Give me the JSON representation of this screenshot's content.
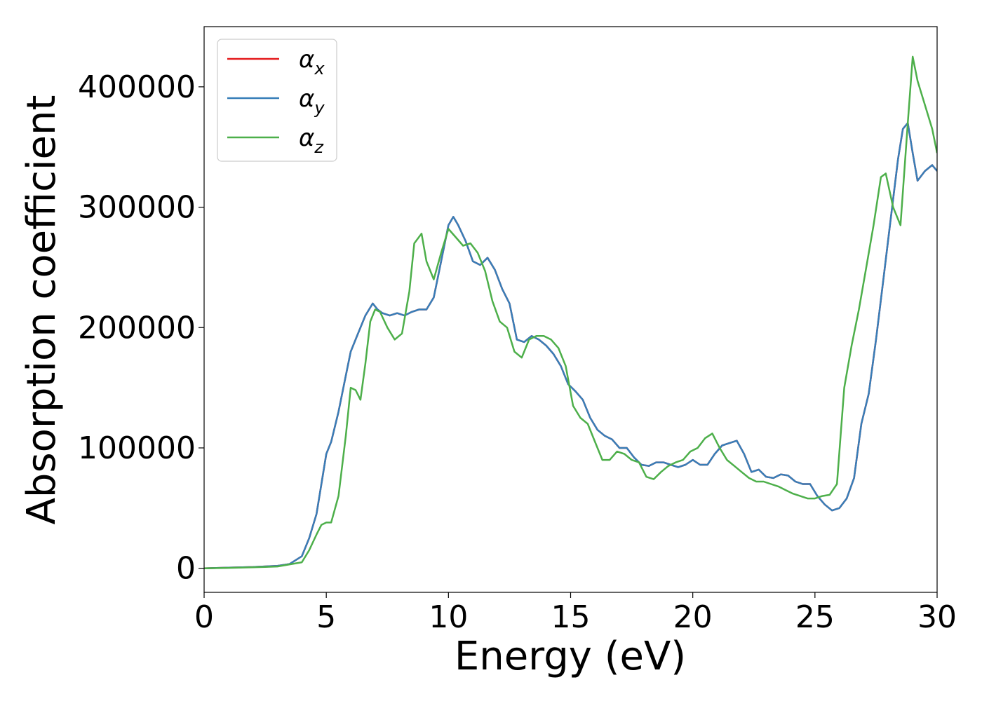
{
  "chart_data": {
    "type": "line",
    "title": "",
    "xlabel": "Energy (eV)",
    "ylabel": "Absorption coefficient",
    "xlim": [
      0,
      30
    ],
    "ylim": [
      -20000,
      450000
    ],
    "xticks": [
      0,
      5,
      10,
      15,
      20,
      25,
      30
    ],
    "yticks": [
      0,
      100000,
      200000,
      300000,
      400000
    ],
    "grid": false,
    "legend": {
      "placement": "top-left"
    },
    "series": [
      {
        "name": "αx",
        "color": "#e41a1c",
        "x": [
          0,
          1,
          2,
          3,
          3.5,
          4,
          4.3,
          4.6,
          4.8,
          5.0,
          5.2,
          5.5,
          5.8,
          6.0,
          6.3,
          6.6,
          6.9,
          7.1,
          7.3,
          7.6,
          7.9,
          8.2,
          8.5,
          8.8,
          9.1,
          9.4,
          9.7,
          10.0,
          10.2,
          10.4,
          10.7,
          11.0,
          11.3,
          11.6,
          11.9,
          12.2,
          12.5,
          12.8,
          13.1,
          13.4,
          13.7,
          14.0,
          14.3,
          14.6,
          14.9,
          15.2,
          15.5,
          15.8,
          16.1,
          16.4,
          16.7,
          17.0,
          17.3,
          17.6,
          17.9,
          18.2,
          18.5,
          18.8,
          19.1,
          19.4,
          19.7,
          20.0,
          20.3,
          20.6,
          20.9,
          21.2,
          21.5,
          21.8,
          22.1,
          22.4,
          22.7,
          23.0,
          23.3,
          23.6,
          23.9,
          24.2,
          24.5,
          24.8,
          25.1,
          25.4,
          25.7,
          26.0,
          26.3,
          26.6,
          26.9,
          27.2,
          27.5,
          27.8,
          28.1,
          28.4,
          28.6,
          28.8,
          29.0,
          29.2,
          29.5,
          29.8,
          30.0
        ],
        "values": [
          0,
          500,
          1000,
          2000,
          3500,
          10000,
          25000,
          45000,
          70000,
          95000,
          105000,
          130000,
          160000,
          180000,
          195000,
          210000,
          220000,
          215000,
          212000,
          210000,
          212000,
          210000,
          213000,
          215000,
          215000,
          225000,
          255000,
          285000,
          292000,
          285000,
          272000,
          255000,
          252000,
          258000,
          248000,
          232000,
          220000,
          190000,
          188000,
          193000,
          190000,
          185000,
          178000,
          168000,
          153000,
          147000,
          140000,
          125000,
          115000,
          110000,
          107000,
          100000,
          100000,
          92000,
          86000,
          85000,
          88000,
          88000,
          86000,
          84000,
          86000,
          90000,
          86000,
          86000,
          95000,
          102000,
          104000,
          106000,
          95000,
          80000,
          82000,
          76000,
          75000,
          78000,
          77000,
          72000,
          70000,
          70000,
          60000,
          53000,
          48000,
          50000,
          58000,
          75000,
          120000,
          145000,
          190000,
          240000,
          290000,
          340000,
          365000,
          370000,
          345000,
          322000,
          330000,
          335000,
          330000
        ]
      },
      {
        "name": "αy",
        "color": "#377eb8",
        "x": [
          0,
          1,
          2,
          3,
          3.5,
          4,
          4.3,
          4.6,
          4.8,
          5.0,
          5.2,
          5.5,
          5.8,
          6.0,
          6.3,
          6.6,
          6.9,
          7.1,
          7.3,
          7.6,
          7.9,
          8.2,
          8.5,
          8.8,
          9.1,
          9.4,
          9.7,
          10.0,
          10.2,
          10.4,
          10.7,
          11.0,
          11.3,
          11.6,
          11.9,
          12.2,
          12.5,
          12.8,
          13.1,
          13.4,
          13.7,
          14.0,
          14.3,
          14.6,
          14.9,
          15.2,
          15.5,
          15.8,
          16.1,
          16.4,
          16.7,
          17.0,
          17.3,
          17.6,
          17.9,
          18.2,
          18.5,
          18.8,
          19.1,
          19.4,
          19.7,
          20.0,
          20.3,
          20.6,
          20.9,
          21.2,
          21.5,
          21.8,
          22.1,
          22.4,
          22.7,
          23.0,
          23.3,
          23.6,
          23.9,
          24.2,
          24.5,
          24.8,
          25.1,
          25.4,
          25.7,
          26.0,
          26.3,
          26.6,
          26.9,
          27.2,
          27.5,
          27.8,
          28.1,
          28.4,
          28.6,
          28.8,
          29.0,
          29.2,
          29.5,
          29.8,
          30.0
        ],
        "values": [
          0,
          500,
          1000,
          2000,
          3500,
          10000,
          25000,
          45000,
          70000,
          95000,
          105000,
          130000,
          160000,
          180000,
          195000,
          210000,
          220000,
          215000,
          212000,
          210000,
          212000,
          210000,
          213000,
          215000,
          215000,
          225000,
          255000,
          285000,
          292000,
          285000,
          272000,
          255000,
          252000,
          258000,
          248000,
          232000,
          220000,
          190000,
          188000,
          193000,
          190000,
          185000,
          178000,
          168000,
          153000,
          147000,
          140000,
          125000,
          115000,
          110000,
          107000,
          100000,
          100000,
          92000,
          86000,
          85000,
          88000,
          88000,
          86000,
          84000,
          86000,
          90000,
          86000,
          86000,
          95000,
          102000,
          104000,
          106000,
          95000,
          80000,
          82000,
          76000,
          75000,
          78000,
          77000,
          72000,
          70000,
          70000,
          60000,
          53000,
          48000,
          50000,
          58000,
          75000,
          120000,
          145000,
          190000,
          240000,
          290000,
          340000,
          365000,
          370000,
          345000,
          322000,
          330000,
          335000,
          330000
        ]
      },
      {
        "name": "αz",
        "color": "#4daf4a",
        "x": [
          0,
          1,
          2,
          3,
          4,
          4.3,
          4.6,
          4.8,
          5.0,
          5.2,
          5.5,
          5.8,
          6.0,
          6.2,
          6.4,
          6.6,
          6.8,
          7.0,
          7.2,
          7.5,
          7.8,
          8.1,
          8.4,
          8.6,
          8.9,
          9.1,
          9.4,
          9.7,
          10.0,
          10.3,
          10.6,
          10.9,
          11.2,
          11.5,
          11.8,
          12.1,
          12.4,
          12.7,
          13.0,
          13.3,
          13.6,
          13.9,
          14.2,
          14.5,
          14.8,
          15.1,
          15.4,
          15.7,
          16.0,
          16.3,
          16.6,
          16.9,
          17.2,
          17.5,
          17.8,
          18.1,
          18.4,
          18.7,
          19.0,
          19.3,
          19.6,
          19.9,
          20.2,
          20.5,
          20.8,
          21.1,
          21.4,
          21.7,
          22.0,
          22.3,
          22.6,
          22.9,
          23.2,
          23.5,
          23.8,
          24.1,
          24.4,
          24.7,
          25.0,
          25.3,
          25.6,
          25.9,
          26.2,
          26.5,
          26.8,
          27.1,
          27.4,
          27.7,
          27.9,
          28.2,
          28.5,
          28.8,
          29.0,
          29.2,
          29.5,
          29.8,
          30.0
        ],
        "values": [
          0,
          300,
          800,
          1500,
          5000,
          15000,
          28000,
          36000,
          38000,
          38000,
          60000,
          110000,
          150000,
          148000,
          140000,
          170000,
          205000,
          215000,
          213000,
          200000,
          190000,
          195000,
          230000,
          270000,
          278000,
          255000,
          240000,
          262000,
          282000,
          275000,
          268000,
          270000,
          262000,
          247000,
          222000,
          205000,
          200000,
          180000,
          175000,
          190000,
          193000,
          193000,
          190000,
          183000,
          168000,
          135000,
          125000,
          120000,
          105000,
          90000,
          90000,
          97000,
          95000,
          90000,
          88000,
          76000,
          74000,
          80000,
          85000,
          88000,
          90000,
          97000,
          100000,
          108000,
          112000,
          100000,
          90000,
          85000,
          80000,
          75000,
          72000,
          72000,
          70000,
          68000,
          65000,
          62000,
          60000,
          58000,
          58000,
          60000,
          61000,
          70000,
          150000,
          185000,
          215000,
          250000,
          285000,
          325000,
          328000,
          300000,
          285000,
          370000,
          425000,
          405000,
          385000,
          365000,
          345000
        ]
      }
    ]
  }
}
